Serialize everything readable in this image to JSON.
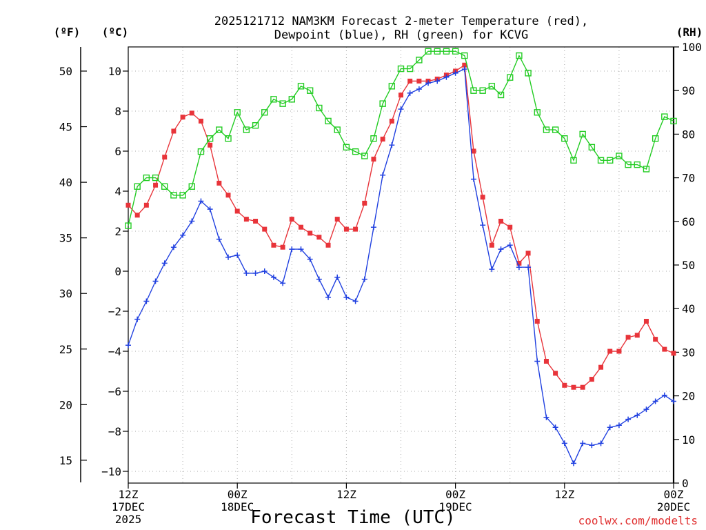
{
  "chart_data": {
    "type": "line",
    "title_line1": "2025121712 NAM3KM Forecast 2-meter Temperature (red),",
    "title_line2": "Dewpoint (blue), RH (green) for KCVG",
    "xlabel": "Forecast Time (UTC)",
    "credit": "coolwx.com/modelts",
    "units": {
      "fahrenheit": "(ºF)",
      "celsius": "(ºC)",
      "rh": "(RH)"
    },
    "x_ticks": [
      {
        "hour": 0,
        "lines": [
          "12Z",
          "17DEC",
          "2025"
        ]
      },
      {
        "hour": 12,
        "lines": [
          "00Z",
          "18DEC"
        ]
      },
      {
        "hour": 24,
        "lines": [
          "12Z"
        ]
      },
      {
        "hour": 36,
        "lines": [
          "00Z",
          "19DEC"
        ]
      },
      {
        "hour": 48,
        "lines": [
          "12Z"
        ]
      },
      {
        "hour": 60,
        "lines": [
          "00Z",
          "20DEC"
        ]
      }
    ],
    "x_range_hours": [
      0,
      60
    ],
    "celsius_ticks": [
      "10",
      "8",
      "6",
      "4",
      "2",
      "0",
      "−2",
      "−4",
      "−6",
      "−8",
      "−10"
    ],
    "fahrenheit_ticks": [
      "50",
      "45",
      "40",
      "35",
      "30",
      "25",
      "20",
      "15"
    ],
    "rh_ticks": [
      "100",
      "90",
      "80",
      "70",
      "60",
      "50",
      "40",
      "30",
      "20",
      "10",
      "0"
    ],
    "y_range_celsius": [
      -10.5,
      11.3
    ],
    "y_range_rh": [
      0,
      100
    ],
    "series": [
      {
        "name": "Temperature",
        "unit": "C",
        "color": "#e8343a",
        "marker": "filled-square",
        "values": [
          3.3,
          2.8,
          3.3,
          4.3,
          5.7,
          7.0,
          7.7,
          7.9,
          7.5,
          6.3,
          4.4,
          3.8,
          3.0,
          2.6,
          2.5,
          2.1,
          1.3,
          1.2,
          2.6,
          2.2,
          1.9,
          1.7,
          1.3,
          2.6,
          2.1,
          2.1,
          3.4,
          5.6,
          6.6,
          7.5,
          8.8,
          9.5,
          9.5,
          9.5,
          9.6,
          9.8,
          10.0,
          10.3,
          6.0,
          3.7,
          1.3,
          2.5,
          2.2,
          0.4,
          0.9,
          -2.5,
          -4.5,
          -5.1,
          -5.7,
          -5.8,
          -5.8,
          -5.4,
          -4.8,
          -4.0,
          -4.0,
          -3.3,
          -3.2,
          -2.5,
          -3.4,
          -3.9,
          -4.1
        ]
      },
      {
        "name": "Dewpoint",
        "unit": "C",
        "color": "#2040e0",
        "marker": "plus",
        "values": [
          -3.7,
          -2.4,
          -1.5,
          -0.5,
          0.4,
          1.2,
          1.8,
          2.5,
          3.5,
          3.1,
          1.6,
          0.7,
          0.8,
          -0.1,
          -0.1,
          0.0,
          -0.3,
          -0.6,
          1.1,
          1.1,
          0.6,
          -0.4,
          -1.3,
          -0.3,
          -1.3,
          -1.5,
          -0.4,
          2.2,
          4.8,
          6.3,
          8.1,
          8.9,
          9.1,
          9.4,
          9.5,
          9.7,
          9.9,
          10.1,
          4.6,
          2.3,
          0.1,
          1.1,
          1.3,
          0.2,
          0.2,
          -4.5,
          -7.3,
          -7.8,
          -8.6,
          -9.6,
          -8.6,
          -8.7,
          -8.6,
          -7.8,
          -7.7,
          -7.4,
          -7.2,
          -6.9,
          -6.5,
          -6.2,
          -6.5
        ]
      },
      {
        "name": "Relative Humidity",
        "unit": "RH",
        "color": "#22cc22",
        "marker": "open-square",
        "values": [
          59,
          68,
          70,
          70,
          68,
          66,
          66,
          68,
          76,
          79,
          81,
          79,
          85,
          81,
          82,
          85,
          88,
          87,
          88,
          91,
          90,
          86,
          83,
          81,
          77,
          76,
          75,
          79,
          87,
          91,
          95,
          95,
          97,
          99,
          99,
          99,
          99,
          98,
          90,
          90,
          91,
          89,
          93,
          98,
          94,
          85,
          81,
          81,
          79,
          74,
          80,
          77,
          74,
          74,
          75,
          73,
          73,
          72,
          79,
          84,
          83
        ]
      }
    ]
  }
}
